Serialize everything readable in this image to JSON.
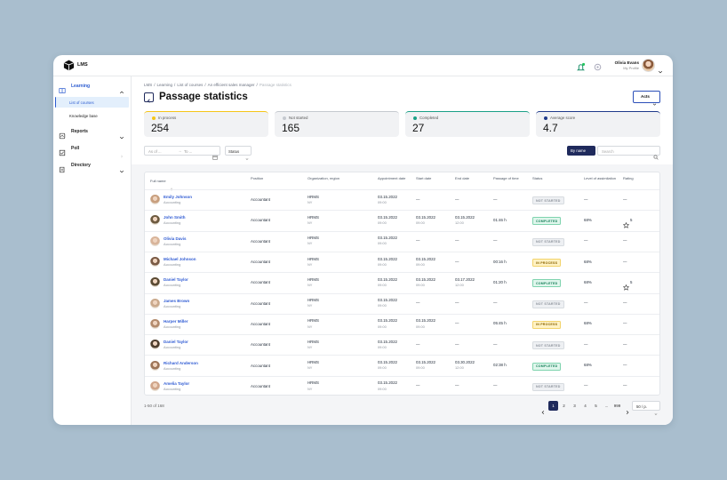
{
  "header": {
    "logo": "LMS",
    "user_name": "Olivia Evans",
    "user_role": "My Profile"
  },
  "sidebar": {
    "items": [
      {
        "label": "Learning",
        "children": [
          "List of courses",
          "Knowledge base"
        ]
      },
      {
        "label": "Reports"
      },
      {
        "label": "Poll"
      },
      {
        "label": "Directory"
      }
    ]
  },
  "breadcrumbs": [
    "LMS",
    "Learning",
    "List of courses",
    "An efficient sales manager",
    "Passage statistics"
  ],
  "title": "Passage statistics",
  "actions_button": "Acts",
  "stats": [
    {
      "label": "In process",
      "value": 254
    },
    {
      "label": "Not started",
      "value": 165
    },
    {
      "label": "Completed",
      "value": 27
    },
    {
      "label": "Average score",
      "value": 4.7
    }
  ],
  "filters": {
    "date_from": "As of ...",
    "date_to": "To ...",
    "status": "Status",
    "sort": "By name",
    "search": "Search"
  },
  "table": {
    "columns": [
      "Full name",
      "Position",
      "Organization, region",
      "Appointment date",
      "Start date",
      "End date",
      "Passage of time",
      "Status",
      "Level of assimilation",
      "Rating"
    ],
    "rows": [
      {
        "name": "Emily Johnson",
        "department": "Accounting",
        "position": "Accountant",
        "organization": [
          "HRMS",
          "NY"
        ],
        "appointment": [
          "03.15.2022",
          "09:00"
        ],
        "start": [
          "—"
        ],
        "end": [
          "—"
        ],
        "passage": "—",
        "status": "NOT STARTED",
        "level": "—",
        "rating": "—"
      },
      {
        "name": "John Smith",
        "department": "Accounting",
        "position": "Accountant",
        "organization": [
          "HRMS",
          "NY"
        ],
        "appointment": [
          "03.15.2022",
          "09:00"
        ],
        "start": [
          "03.15.2022",
          "09:00"
        ],
        "end": [
          "03.15.2022",
          "12:00"
        ],
        "passage": "01:46 h",
        "status": "COMPLETED",
        "level": "68%",
        "rating": 5
      },
      {
        "name": "Olivia Davis",
        "department": "Accounting",
        "position": "Accountant",
        "organization": [
          "HRMS",
          "NY"
        ],
        "appointment": [
          "03.15.2022",
          "09:00"
        ],
        "start": [
          "—"
        ],
        "end": [
          "—"
        ],
        "passage": "—",
        "status": "NOT STARTED",
        "level": "—",
        "rating": "—"
      },
      {
        "name": "Michael Johnson",
        "department": "Accounting",
        "position": "Accountant",
        "organization": [
          "HRMS",
          "NY"
        ],
        "appointment": [
          "03.15.2022",
          "09:00"
        ],
        "start": [
          "03.15.2022",
          "09:00"
        ],
        "end": [
          "—"
        ],
        "passage": "00:16 h",
        "status": "IN PROCESS",
        "level": "68%",
        "rating": "—"
      },
      {
        "name": "Daniel Taylor",
        "department": "Accounting",
        "position": "Accountant",
        "organization": [
          "HRMS",
          "NY"
        ],
        "appointment": [
          "03.15.2022",
          "09:00"
        ],
        "start": [
          "03.15.2022",
          "09:00"
        ],
        "end": [
          "03.17.2022",
          "12:00"
        ],
        "passage": "01:20 h",
        "status": "COMPLETED",
        "level": "68%",
        "rating": 5
      },
      {
        "name": "James Brown",
        "department": "Accounting",
        "position": "Accountant",
        "organization": [
          "HRMS",
          "NY"
        ],
        "appointment": [
          "03.15.2022",
          "09:00"
        ],
        "start": [
          "—"
        ],
        "end": [
          "—"
        ],
        "passage": "—",
        "status": "NOT STARTED",
        "level": "—",
        "rating": "—"
      },
      {
        "name": "Harper Miller",
        "department": "Accounting",
        "position": "Accountant",
        "organization": [
          "HRMS",
          "NY"
        ],
        "appointment": [
          "03.15.2022",
          "09:00"
        ],
        "start": [
          "03.15.2022",
          "09:00"
        ],
        "end": [
          "—"
        ],
        "passage": "05:45 h",
        "status": "IN PROCESS",
        "level": "68%",
        "rating": "—"
      },
      {
        "name": "Daniel Taylor",
        "department": "Accounting",
        "position": "Accountant",
        "organization": [
          "HRMS",
          "NY"
        ],
        "appointment": [
          "03.15.2022",
          "09:00"
        ],
        "start": [
          "—"
        ],
        "end": [
          "—"
        ],
        "passage": "—",
        "status": "NOT STARTED",
        "level": "—",
        "rating": "—"
      },
      {
        "name": "Richard Anderson",
        "department": "Accounting",
        "position": "Accountant",
        "organization": [
          "HRMS",
          "NY"
        ],
        "appointment": [
          "03.15.2022",
          "09:00"
        ],
        "start": [
          "03.15.2022",
          "09:00"
        ],
        "end": [
          "03.30.2022",
          "12:00"
        ],
        "passage": "02:38 h",
        "status": "COMPLETED",
        "level": "68%",
        "rating": "—"
      },
      {
        "name": "Amelia Taylor",
        "department": "Accounting",
        "position": "Accountant",
        "organization": [
          "HRMS",
          "NY"
        ],
        "appointment": [
          "03.15.2022",
          "09:00"
        ],
        "start": [
          "—"
        ],
        "end": [
          "—"
        ],
        "passage": "—",
        "status": "NOT STARTED",
        "level": "—",
        "rating": "—"
      }
    ]
  },
  "pagination": {
    "summary": "1-50 of 168",
    "pages": [
      1,
      2,
      3,
      4,
      5,
      "...",
      999
    ],
    "page_size": "50 / p."
  }
}
